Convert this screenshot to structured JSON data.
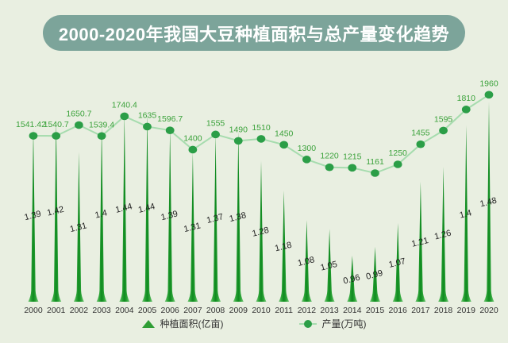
{
  "title": "2000-2020年我国大豆种植面积与总产量变化趋势",
  "legend": {
    "area_label": "种植面积(亿亩)",
    "production_label": "产量(万吨)"
  },
  "chart_data": {
    "type": "combo: spike-bar + line",
    "title": "2000-2020年我国大豆种植面积与总产量变化趋势",
    "categories": [
      "2000",
      "2001",
      "2002",
      "2003",
      "2004",
      "2005",
      "2006",
      "2007",
      "2008",
      "2009",
      "2010",
      "2011",
      "2012",
      "2013",
      "2014",
      "2015",
      "2016",
      "2017",
      "2018",
      "2019",
      "2020"
    ],
    "series": [
      {
        "name": "种植面积(亿亩)",
        "type": "bar",
        "unit": "亿亩",
        "values": [
          1.39,
          1.42,
          1.31,
          1.4,
          1.44,
          1.44,
          1.39,
          1.31,
          1.37,
          1.38,
          1.28,
          1.18,
          1.08,
          1.05,
          0.96,
          0.99,
          1.07,
          1.21,
          1.26,
          1.4,
          1.48
        ]
      },
      {
        "name": "产量(万吨)",
        "type": "line",
        "unit": "万吨",
        "values": [
          1541.42,
          1540.7,
          1650.7,
          1539.4,
          1740.4,
          1635,
          1596.7,
          1400,
          1555,
          1490,
          1510,
          1450,
          1300,
          1220,
          1215,
          1161,
          1250,
          1455,
          1595,
          1810,
          1960
        ]
      }
    ],
    "xlabel": "",
    "ylabel": "",
    "grid": false,
    "legend_position": "bottom",
    "data_labels": true
  },
  "colors": {
    "background": "#e9efe1",
    "banner": "#7ca49a",
    "banner_text": "#ffffff",
    "spike_core": "#0f8a20",
    "spike_mid": "#2aa335",
    "spike_edge": "#7cc97f",
    "line": "#a6dcae",
    "dot": "#2b9e47",
    "line_label": "#3ba23b",
    "bar_label": "#1f1f1f",
    "axis_label": "#333333",
    "legend_text": "#333333"
  }
}
